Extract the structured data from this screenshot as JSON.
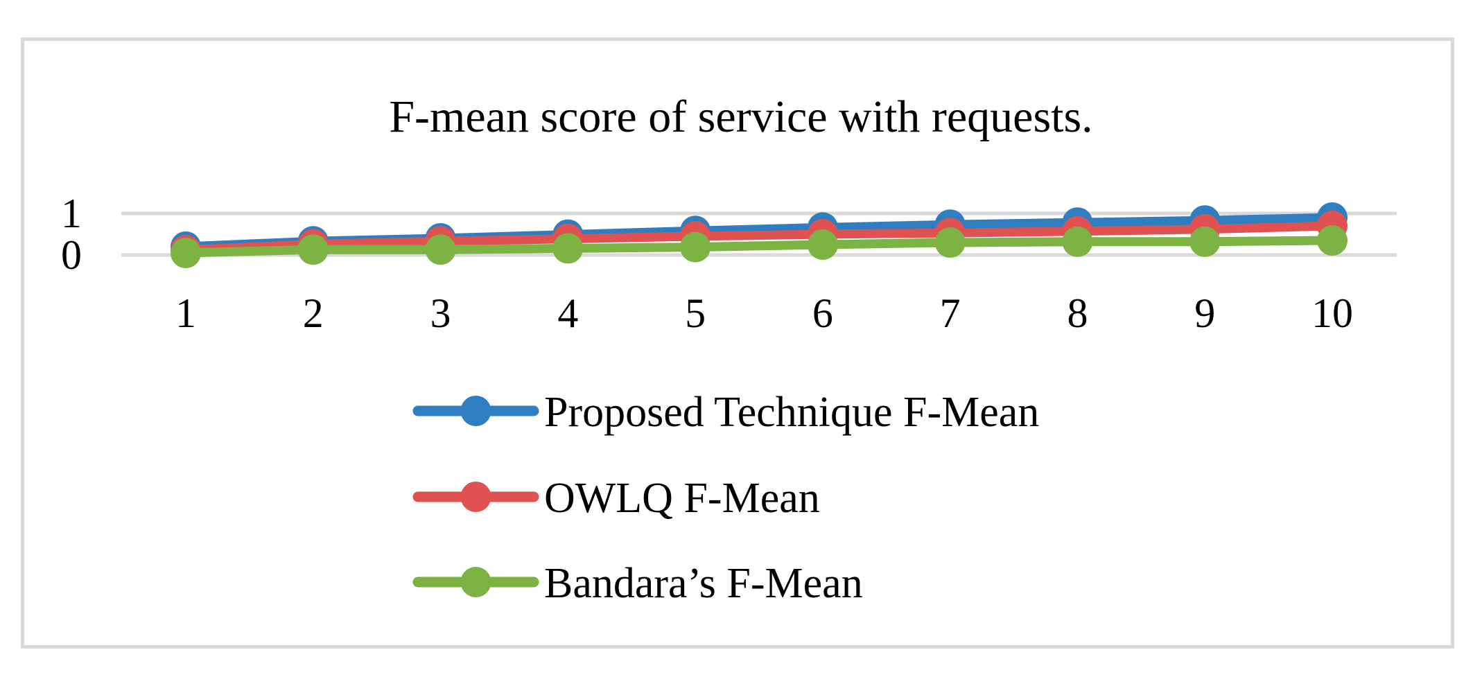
{
  "chart_data": {
    "type": "line",
    "title": "F-mean score of service with requests.",
    "xlabel": "",
    "ylabel": "",
    "categories": [
      "1",
      "2",
      "3",
      "4",
      "5",
      "6",
      "7",
      "8",
      "9",
      "10"
    ],
    "y_ticks": [
      "0",
      "1"
    ],
    "ylim": [
      0,
      1
    ],
    "grid": true,
    "legend_position": "bottom",
    "series": [
      {
        "name": "Proposed Technique F-Mean",
        "color": "#2e7ec1",
        "values": [
          0.2,
          0.33,
          0.4,
          0.49,
          0.58,
          0.66,
          0.73,
          0.78,
          0.83,
          0.9
        ]
      },
      {
        "name": "OWLQ F-Mean",
        "color": "#e05252",
        "values": [
          0.12,
          0.26,
          0.33,
          0.39,
          0.45,
          0.5,
          0.53,
          0.57,
          0.62,
          0.7
        ]
      },
      {
        "name": "Bandara’s F-Mean",
        "color": "#7cb342",
        "values": [
          0.05,
          0.13,
          0.13,
          0.16,
          0.19,
          0.25,
          0.3,
          0.32,
          0.32,
          0.35
        ]
      }
    ]
  }
}
